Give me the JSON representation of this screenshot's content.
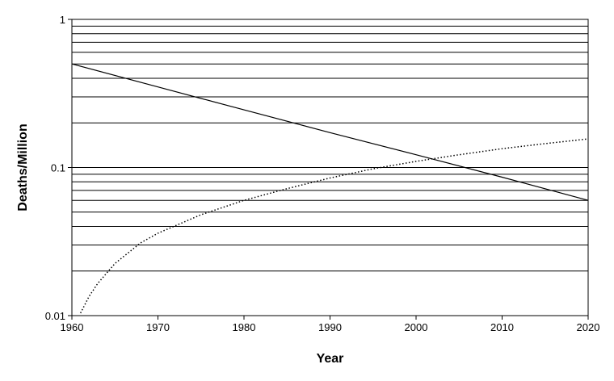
{
  "chart_data": {
    "type": "line",
    "title": "",
    "xlabel": "Year",
    "ylabel": "Deaths/Million",
    "xlim": [
      1960,
      2020
    ],
    "ylim": [
      0.01,
      1
    ],
    "y_scale": "log",
    "grid": "horizontal major and minor",
    "legend": "none",
    "x_tick_labels": [
      "1960",
      "1970",
      "1980",
      "1990",
      "2000",
      "2010",
      "2020"
    ],
    "y_tick_labels": [
      "0.01",
      "0.1",
      "1"
    ],
    "colors": {
      "line": "#000000",
      "grid": "#000000",
      "background": "#ffffff"
    },
    "series": [
      {
        "style": "solid",
        "x": [
          1960,
          1970,
          1980,
          1990,
          2000,
          2010,
          2020
        ],
        "y": [
          0.5,
          0.35,
          0.245,
          0.172,
          0.122,
          0.086,
          0.06
        ]
      },
      {
        "style": "dotted",
        "x": [
          1961,
          1962,
          1963,
          1965,
          1968,
          1970,
          1975,
          1980,
          1985,
          1990,
          1995,
          2000,
          2005,
          2010,
          2015,
          2020
        ],
        "y": [
          0.0104,
          0.0135,
          0.0165,
          0.0225,
          0.031,
          0.036,
          0.048,
          0.06,
          0.072,
          0.085,
          0.098,
          0.11,
          0.122,
          0.134,
          0.145,
          0.156
        ]
      }
    ]
  }
}
